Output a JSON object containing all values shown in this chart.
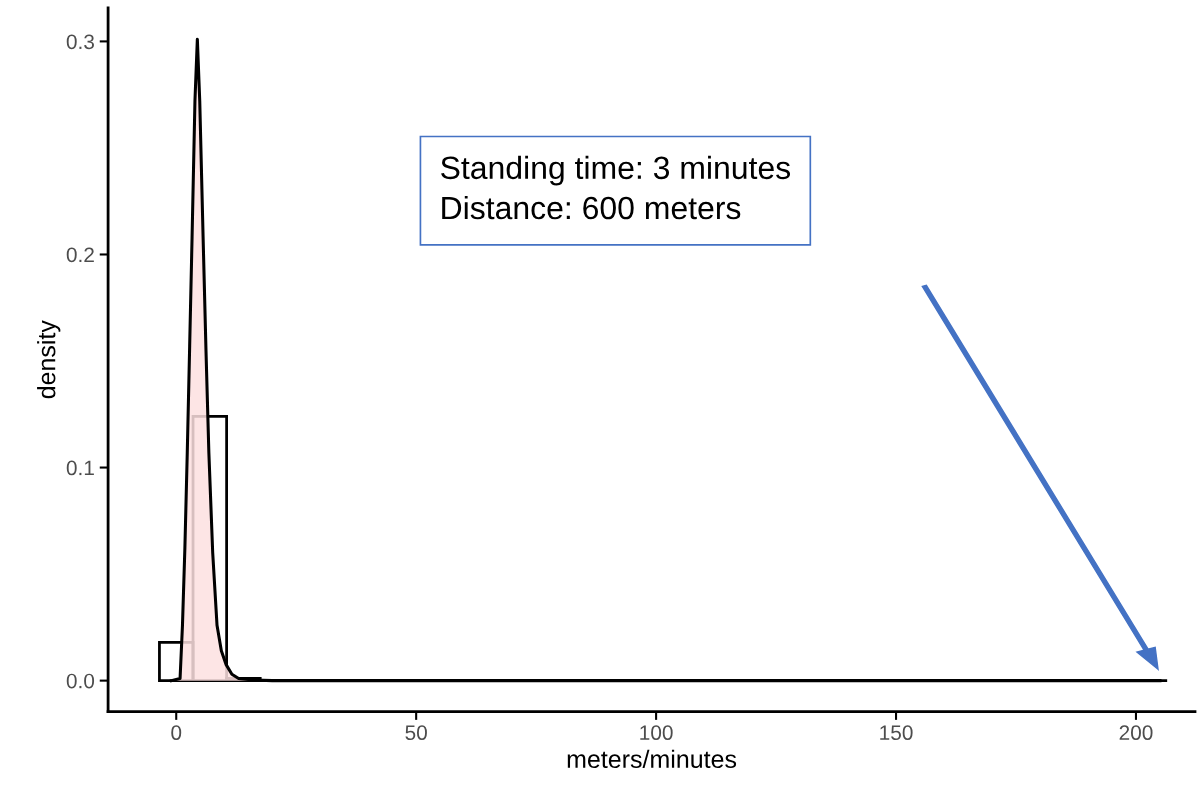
{
  "chart_data": {
    "type": "histogram",
    "xlabel": "meters/minutes",
    "ylabel": "density",
    "xlim": [
      -14.2,
      212.3
    ],
    "ylim": [
      -0.0145,
      0.3157
    ],
    "xticks": [
      0,
      50,
      100,
      150,
      200
    ],
    "yticks": [
      {
        "value": 0,
        "label": "0.0"
      },
      {
        "value": 0.1,
        "label": "0.1"
      },
      {
        "value": 0.2,
        "label": "0.2"
      },
      {
        "value": 0.3,
        "label": "0.3"
      }
    ],
    "grid": false,
    "legend": false,
    "annotations": [
      "Standing time: 3 minutes",
      "Distance: 600 meters"
    ],
    "series": [
      {
        "color": "#000000",
        "bins": [
          -3.5,
          3.5,
          10.5,
          17.5,
          24.5,
          31.5,
          38.5,
          45.5,
          52.5,
          59.5,
          66.5,
          73.5,
          80.5,
          87.5,
          94.5,
          101.5,
          108.5,
          115.5,
          122.5,
          129.5,
          136.5,
          143.5,
          150.5,
          157.5,
          164.5,
          171.5,
          178.5,
          185.5,
          192.5,
          199.5,
          206.5
        ],
        "values": [
          0.018,
          0.124,
          0.001,
          0,
          0,
          0,
          0,
          0,
          0,
          0,
          0,
          0,
          0,
          0,
          0,
          0,
          0,
          0,
          0,
          0,
          0,
          0,
          0,
          0,
          0,
          0,
          0,
          0,
          0,
          0
        ]
      },
      {
        "type": "area",
        "color": "#fde0e0",
        "x": [
          -1,
          0.8,
          1.3,
          1.8,
          2.3,
          2.8,
          3.3,
          3.9,
          4.4,
          4.9,
          5.6,
          6.2,
          6.8,
          7.6,
          8.5,
          9.4,
          10.4,
          11.6,
          13,
          16,
          20,
          50,
          100,
          150,
          205
        ],
        "values": [
          0,
          0.001,
          0.026,
          0.062,
          0.107,
          0.157,
          0.208,
          0.272,
          0.301,
          0.272,
          0.208,
          0.155,
          0.107,
          0.06,
          0.026,
          0.014,
          0.0075,
          0.003,
          0.001,
          0.0003,
          0,
          0,
          0,
          0,
          0
        ]
      }
    ]
  }
}
